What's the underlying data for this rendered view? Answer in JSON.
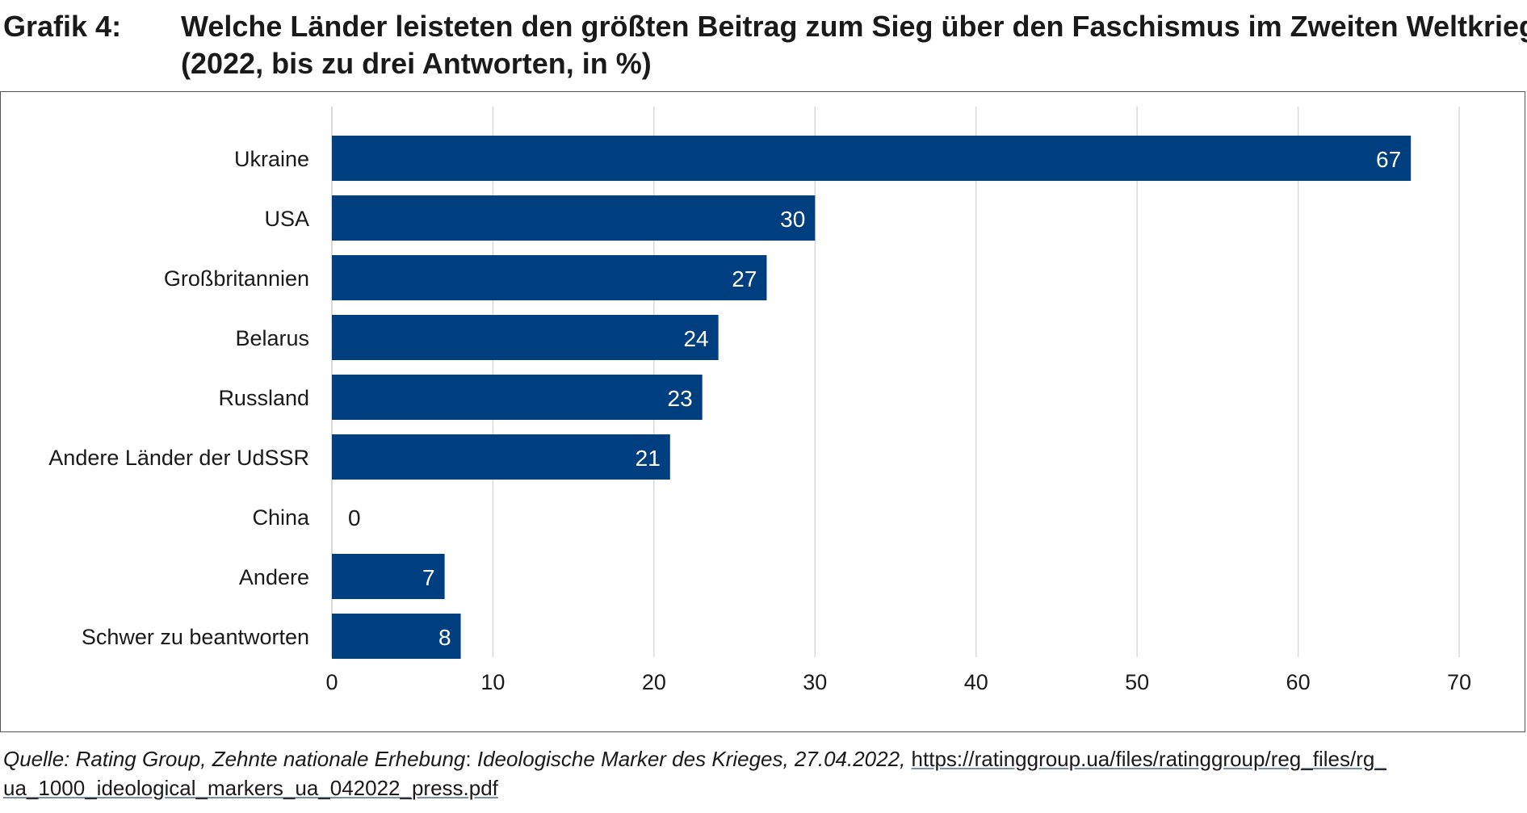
{
  "figure": {
    "label": "Grafik 4:",
    "title_line1": "Welche Länder leisteten den größten Beitrag zum Sieg über den Faschismus im Zweiten Weltkrieg?",
    "title_line2": "(2022, bis zu drei Antworten, in %)"
  },
  "chart_data": {
    "type": "bar",
    "orientation": "horizontal",
    "categories": [
      "Ukraine",
      "USA",
      "Großbritannien",
      "Belarus",
      "Russland",
      "Andere Länder der UdSSR",
      "China",
      "Andere",
      "Schwer zu beantworten"
    ],
    "values": [
      67,
      30,
      27,
      24,
      23,
      21,
      0,
      7,
      8
    ],
    "value_labels": [
      "67",
      "30",
      "27",
      "24",
      "23",
      "21",
      "0",
      "7",
      "8"
    ],
    "xlim": [
      0,
      70
    ],
    "xticks": [
      "0",
      "10",
      "20",
      "30",
      "40",
      "50",
      "60",
      "70"
    ],
    "grid": true,
    "legend": "none",
    "xlabel": "",
    "ylabel": "",
    "bar_color": "#003f7f",
    "label_color_inside": "#ffffff",
    "label_color_outside": "#1a1a1a",
    "grid_color": "#d9d9d9"
  },
  "source": {
    "prefix": "Quelle: Rating Group, Zehnte nationale Erhebung",
    "colon": ":",
    "rest": " Ideologische Marker des Krieges, 27.04.2022,",
    "link_part1": "https://ratinggroup.ua/files/ratinggroup/reg_files/rg_",
    "link_part2": "ua_1000_ideological_markers_ua_042022_press.pdf"
  }
}
